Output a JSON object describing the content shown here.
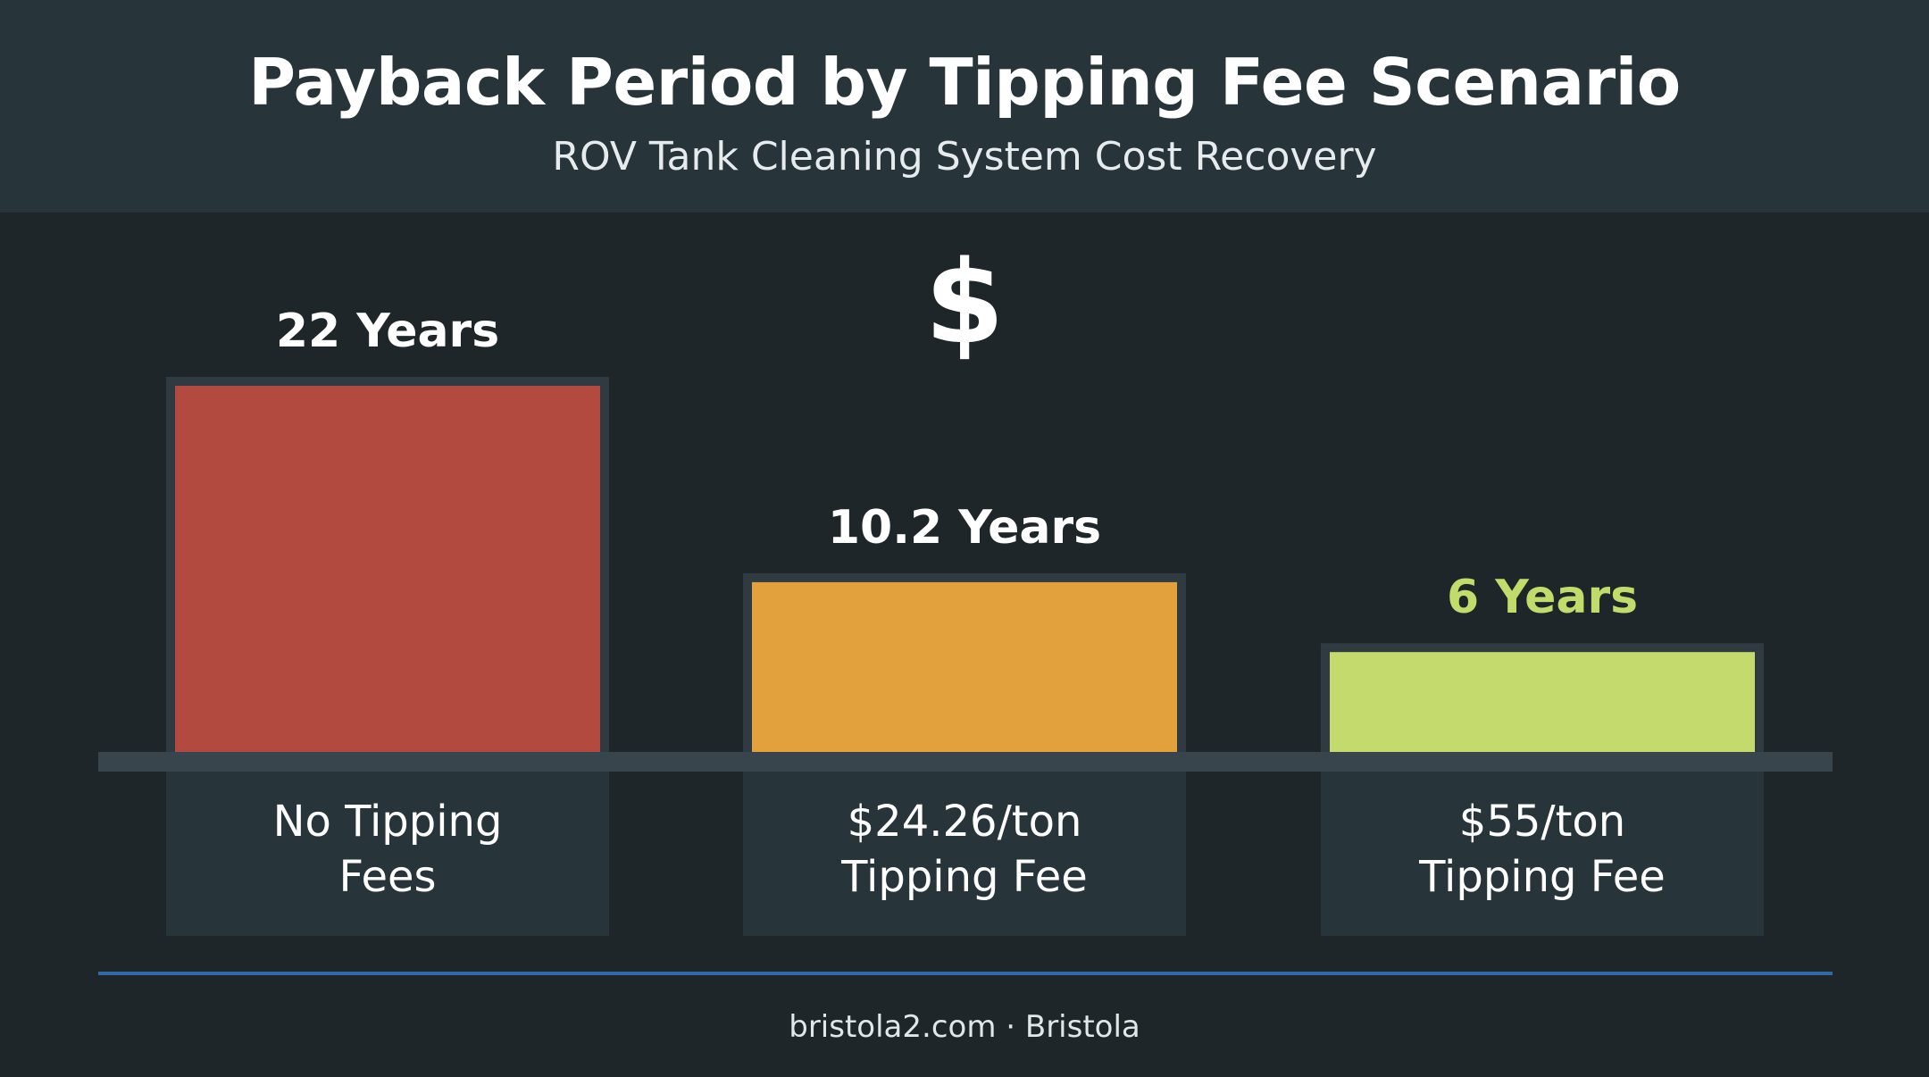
{
  "header": {
    "title": "Payback Period by Tipping Fee Scenario",
    "subtitle": "ROV Tank Cleaning System Cost Recovery"
  },
  "decoration": {
    "symbol": "$",
    "symbol_icon": "dollar-sign-icon"
  },
  "footer": {
    "text": "bristola2.com · Bristola"
  },
  "colors": {
    "background": "#1e2629",
    "header_band": "#27343a",
    "baseline": "#38454c",
    "label_box": "#27343a",
    "footer_rule": "#2f6aa8",
    "bar_outline": "#2f3b41"
  },
  "chart_data": {
    "type": "bar",
    "title": "Payback Period by Tipping Fee Scenario",
    "subtitle": "ROV Tank Cleaning System Cost Recovery",
    "categories": [
      [
        "No Tipping",
        "Fees"
      ],
      [
        "$24.26/ton",
        "Tipping Fee"
      ],
      [
        "$55/ton",
        "Tipping Fee"
      ]
    ],
    "values": [
      22,
      10.2,
      6
    ],
    "value_labels": [
      "22 Years",
      "10.2 Years",
      "6 Years"
    ],
    "bar_colors": [
      "#b34a40",
      "#e3a13e",
      "#c5da6c"
    ],
    "value_label_colors": [
      "#ffffff",
      "#ffffff",
      "#c2dc6b"
    ],
    "unit": "Years",
    "ylim": [
      0,
      22
    ],
    "grid": false,
    "legend": "none"
  }
}
